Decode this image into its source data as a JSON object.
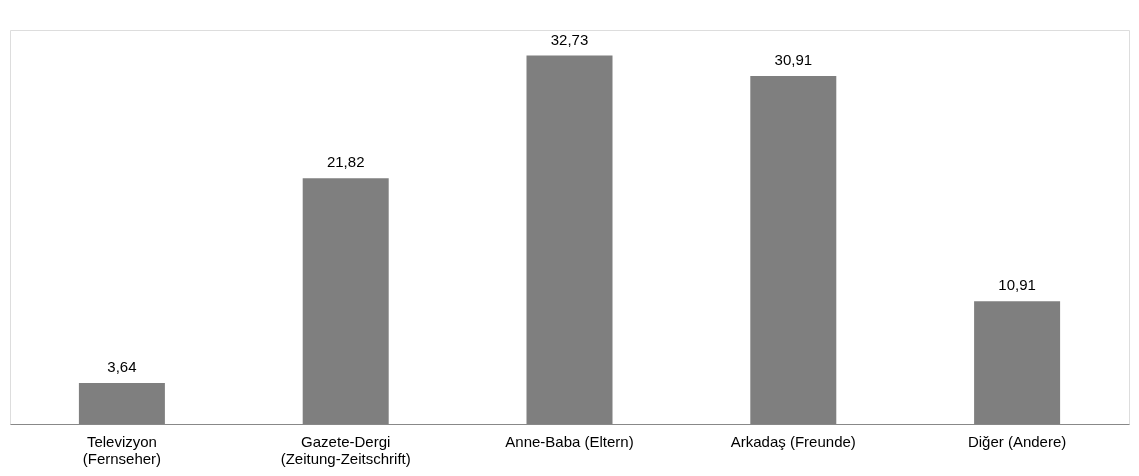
{
  "chart_data": {
    "type": "bar",
    "categories": [
      "Televizyon\n(Fernseher)",
      "Gazete-Dergi\n(Zeitung-Zeitschrift)",
      "Anne-Baba (Eltern)",
      "Arkadaş (Freunde)",
      "Diğer (Andere)"
    ],
    "values": [
      3.64,
      21.82,
      32.73,
      30.91,
      10.91
    ],
    "value_labels": [
      "3,64",
      "21,82",
      "32,73",
      "30,91",
      "10,91"
    ],
    "color": "#7f7f7f",
    "grid": false
  }
}
